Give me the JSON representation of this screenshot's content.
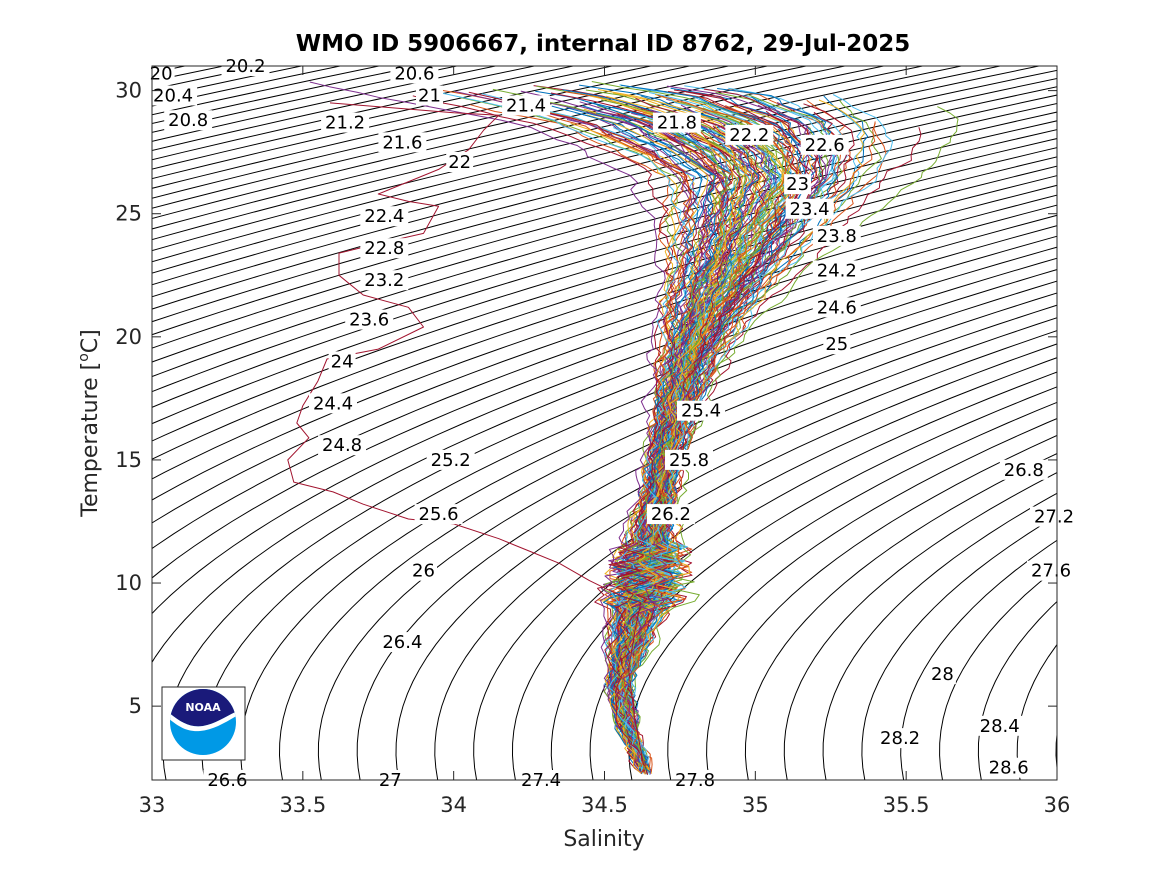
{
  "chart_data": {
    "type": "line",
    "title": "WMO ID 5906667, internal ID 8762, 29-Jul-2025",
    "xlabel": "Salinity",
    "ylabel": "Temperature [",
    "ylabel_sup": "o",
    "ylabel_end": "C]",
    "xlim": [
      33,
      36
    ],
    "ylim": [
      2,
      31
    ],
    "xticks": [
      "33",
      "33.5",
      "34",
      "34.5",
      "35",
      "35.5",
      "36"
    ],
    "yticks": [
      "5",
      "10",
      "15",
      "20",
      "25",
      "30"
    ],
    "grid": false,
    "legend": "none",
    "density_contours": [
      {
        "label": "20",
        "s": 33.03,
        "t": 30.7
      },
      {
        "label": "20.2",
        "s": 33.31,
        "t": 31.0
      },
      {
        "label": "20.4",
        "s": 33.07,
        "t": 29.8
      },
      {
        "label": "20.6",
        "s": 33.87,
        "t": 30.7
      },
      {
        "label": "20.8",
        "s": 33.12,
        "t": 28.8
      },
      {
        "label": "21",
        "s": 33.92,
        "t": 29.8
      },
      {
        "label": "21.2",
        "s": 33.64,
        "t": 28.7
      },
      {
        "label": "21.4",
        "s": 34.24,
        "t": 29.4
      },
      {
        "label": "21.6",
        "s": 33.83,
        "t": 27.9
      },
      {
        "label": "21.8",
        "s": 34.74,
        "t": 28.7
      },
      {
        "label": "22",
        "s": 34.02,
        "t": 27.1
      },
      {
        "label": "22.2",
        "s": 34.98,
        "t": 28.2
      },
      {
        "label": "22.4",
        "s": 33.77,
        "t": 24.9
      },
      {
        "label": "22.6",
        "s": 35.23,
        "t": 27.8
      },
      {
        "label": "22.8",
        "s": 33.77,
        "t": 23.6
      },
      {
        "label": "23",
        "s": 35.14,
        "t": 26.2
      },
      {
        "label": "23.2",
        "s": 33.77,
        "t": 22.3
      },
      {
        "label": "23.4",
        "s": 35.18,
        "t": 25.2
      },
      {
        "label": "23.6",
        "s": 33.72,
        "t": 20.7
      },
      {
        "label": "23.8",
        "s": 35.27,
        "t": 24.1
      },
      {
        "label": "24",
        "s": 33.63,
        "t": 19.0
      },
      {
        "label": "24.2",
        "s": 35.27,
        "t": 22.7
      },
      {
        "label": "24.4",
        "s": 33.6,
        "t": 17.3
      },
      {
        "label": "24.6",
        "s": 35.27,
        "t": 21.2
      },
      {
        "label": "24.8",
        "s": 33.63,
        "t": 15.6
      },
      {
        "label": "25",
        "s": 35.27,
        "t": 19.7
      },
      {
        "label": "25.2",
        "s": 33.99,
        "t": 15.0
      },
      {
        "label": "25.4",
        "s": 34.82,
        "t": 17.0
      },
      {
        "label": "25.6",
        "s": 33.95,
        "t": 12.8
      },
      {
        "label": "25.8",
        "s": 34.78,
        "t": 15.0
      },
      {
        "label": "26",
        "s": 33.9,
        "t": 10.5
      },
      {
        "label": "26.2",
        "s": 34.72,
        "t": 12.8
      },
      {
        "label": "26.4",
        "s": 33.83,
        "t": 7.6
      },
      {
        "label": "26.6",
        "s": 33.25,
        "t": 2.0
      },
      {
        "label": "26.8",
        "s": 35.89,
        "t": 14.6
      },
      {
        "label": "27",
        "s": 33.79,
        "t": 2.0
      },
      {
        "label": "27.2",
        "s": 35.99,
        "t": 12.7
      },
      {
        "label": "27.4",
        "s": 34.29,
        "t": 2.0
      },
      {
        "label": "27.6",
        "s": 35.98,
        "t": 10.5
      },
      {
        "label": "27.8",
        "s": 34.8,
        "t": 2.0
      },
      {
        "label": "28",
        "s": 35.62,
        "t": 6.3
      },
      {
        "label": "28.2",
        "s": 35.48,
        "t": 3.7
      },
      {
        "label": "28.4",
        "s": 35.81,
        "t": 4.2
      },
      {
        "label": "28.6",
        "s": 35.84,
        "t": 2.5
      }
    ],
    "highlight_profile": {
      "name": "",
      "color": "#A2142F",
      "points": [
        [
          33.59,
          29.5
        ],
        [
          33.8,
          29.3
        ],
        [
          34.0,
          29.1
        ],
        [
          34.15,
          29.0
        ],
        [
          34.1,
          28.4
        ],
        [
          34.05,
          27.6
        ],
        [
          33.95,
          26.8
        ],
        [
          33.75,
          25.8
        ],
        [
          33.85,
          25.5
        ],
        [
          33.95,
          25.3
        ],
        [
          33.9,
          24.2
        ],
        [
          33.72,
          23.7
        ],
        [
          33.62,
          23.4
        ],
        [
          33.62,
          22.5
        ],
        [
          33.7,
          21.7
        ],
        [
          33.85,
          21.2
        ],
        [
          33.9,
          20.4
        ],
        [
          33.75,
          19.5
        ],
        [
          33.58,
          19.1
        ],
        [
          33.55,
          18.2
        ],
        [
          33.5,
          17.2
        ],
        [
          33.48,
          16.5
        ],
        [
          33.52,
          15.9
        ],
        [
          33.45,
          15.0
        ],
        [
          33.47,
          14.1
        ],
        [
          33.6,
          13.7
        ],
        [
          33.7,
          13.2
        ],
        [
          33.85,
          12.6
        ],
        [
          34.0,
          12.4
        ],
        [
          34.15,
          11.8
        ],
        [
          34.25,
          11.3
        ],
        [
          34.35,
          10.8
        ],
        [
          34.45,
          10.1
        ],
        [
          34.55,
          9.5
        ],
        [
          34.62,
          9.2
        ],
        [
          34.6,
          8.0
        ],
        [
          34.58,
          6.5
        ],
        [
          34.6,
          4.5
        ],
        [
          34.63,
          2.6
        ]
      ]
    },
    "profile_colors": [
      "#0072BD",
      "#D95319",
      "#EDB120",
      "#7E2F8E",
      "#77AC30",
      "#4DBEEE",
      "#A2142F"
    ],
    "profile_count": 140
  },
  "logo": {
    "text": "NOAA",
    "colors": {
      "dark": "#1a1a7a",
      "light": "#0099e6"
    }
  }
}
